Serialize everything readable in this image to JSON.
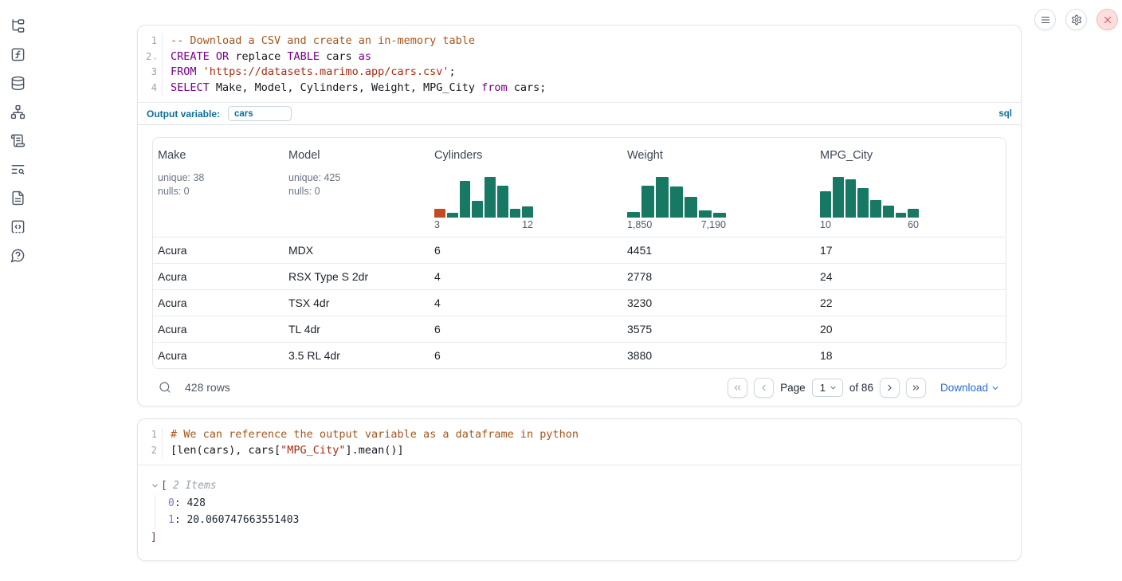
{
  "sidebar": {
    "icons": [
      "file-tree-icon",
      "variables-icon",
      "datasources-icon",
      "dependencies-icon",
      "scratchpad-icon",
      "logs-search-icon",
      "documentation-icon",
      "snippets-icon",
      "help-icon"
    ]
  },
  "topbar": {
    "buttons": [
      {
        "icon": "menu-icon"
      },
      {
        "icon": "settings-gear-icon"
      },
      {
        "icon": "shutdown-close-icon"
      }
    ]
  },
  "colors": {
    "hist_teal": "#177963",
    "hist_orange": "#c34a22",
    "accent_teal": "#0d6d99",
    "link_blue": "#2b6cd4",
    "close_red": "#e24d4d"
  },
  "cells": [
    {
      "type": "sql",
      "code": {
        "lines": [
          {
            "num": "1",
            "tokens": [
              {
                "t": "-- Download a CSV and create an in-memory table",
                "c": "com"
              }
            ]
          },
          {
            "num": "2",
            "fold": true,
            "tokens": [
              {
                "t": "CREATE",
                "c": "kw"
              },
              {
                "t": " ",
                "c": ""
              },
              {
                "t": "OR",
                "c": "kw"
              },
              {
                "t": " replace ",
                "c": ""
              },
              {
                "t": "TABLE",
                "c": "kw"
              },
              {
                "t": " cars ",
                "c": ""
              },
              {
                "t": "as",
                "c": "kw"
              }
            ]
          },
          {
            "num": "3",
            "tokens": [
              {
                "t": "FROM",
                "c": "kw"
              },
              {
                "t": " ",
                "c": ""
              },
              {
                "t": "'https://datasets.marimo.app/cars.csv'",
                "c": "str"
              },
              {
                "t": ";",
                "c": ""
              }
            ]
          },
          {
            "num": "4",
            "tokens": [
              {
                "t": "SELECT",
                "c": "kw"
              },
              {
                "t": " Make, Model, Cylinders, Weight, MPG_City ",
                "c": ""
              },
              {
                "t": "from",
                "c": "kw"
              },
              {
                "t": " cars;",
                "c": ""
              }
            ]
          }
        ]
      },
      "output_variable": {
        "label": "Output variable:",
        "value": "cars",
        "language_badge": "sql"
      },
      "table": {
        "columns": [
          {
            "name": "Make",
            "stats": [
              "unique: 38",
              "nulls: 0"
            ]
          },
          {
            "name": "Model",
            "stats": [
              "unique: 425",
              "nulls: 0"
            ]
          },
          {
            "name": "Cylinders",
            "hist": 0
          },
          {
            "name": "Weight",
            "hist": 1
          },
          {
            "name": "MPG_City",
            "hist": 2
          }
        ],
        "rows": [
          [
            "Acura",
            "MDX",
            "6",
            "4451",
            "17"
          ],
          [
            "Acura",
            "RSX Type S 2dr",
            "4",
            "2778",
            "24"
          ],
          [
            "Acura",
            "TSX 4dr",
            "4",
            "3230",
            "22"
          ],
          [
            "Acura",
            "TL 4dr",
            "6",
            "3575",
            "20"
          ],
          [
            "Acura",
            "3.5 RL 4dr",
            "6",
            "3880",
            "18"
          ]
        ]
      },
      "footer": {
        "row_count": "428 rows",
        "page_label": "Page",
        "page_value": "1",
        "of_label": "of 86",
        "download_label": "Download"
      }
    },
    {
      "type": "python",
      "code": {
        "lines": [
          {
            "num": "1",
            "tokens": [
              {
                "t": "# We can reference the output variable as a dataframe in python",
                "c": "com"
              }
            ]
          },
          {
            "num": "2",
            "tokens": [
              {
                "t": "[len(cars), cars[",
                "c": ""
              },
              {
                "t": "\"MPG_City\"",
                "c": "str"
              },
              {
                "t": "].mean()]",
                "c": ""
              }
            ]
          }
        ]
      },
      "output_tree": {
        "bracket_open": "[",
        "items_label": "2 Items",
        "entries": [
          {
            "key": "0",
            "value": "428"
          },
          {
            "key": "1",
            "value": "20.060747663551403"
          }
        ],
        "bracket_close": "]"
      }
    }
  ],
  "chart_data": [
    {
      "type": "bar",
      "column": "Cylinders",
      "title": "Cylinders distribution histogram",
      "x_min_label": "3",
      "x_max_label": "12",
      "xlim": [
        3,
        12
      ],
      "values": [
        20,
        12,
        85,
        38,
        95,
        75,
        20,
        26
      ],
      "units": "relative bar height %",
      "highlight_index": 0
    },
    {
      "type": "bar",
      "column": "Weight",
      "title": "Weight distribution histogram",
      "x_min_label": "1,850",
      "x_max_label": "7,190",
      "xlim": [
        1850,
        7190
      ],
      "values": [
        13,
        75,
        95,
        72,
        48,
        17,
        12
      ],
      "units": "relative bar height %",
      "highlight_index": null
    },
    {
      "type": "bar",
      "column": "MPG_City",
      "title": "MPG_City distribution histogram",
      "x_min_label": "10",
      "x_max_label": "60",
      "xlim": [
        10,
        60
      ],
      "values": [
        62,
        95,
        88,
        68,
        40,
        28,
        12,
        20
      ],
      "units": "relative bar height %",
      "highlight_index": null
    }
  ]
}
